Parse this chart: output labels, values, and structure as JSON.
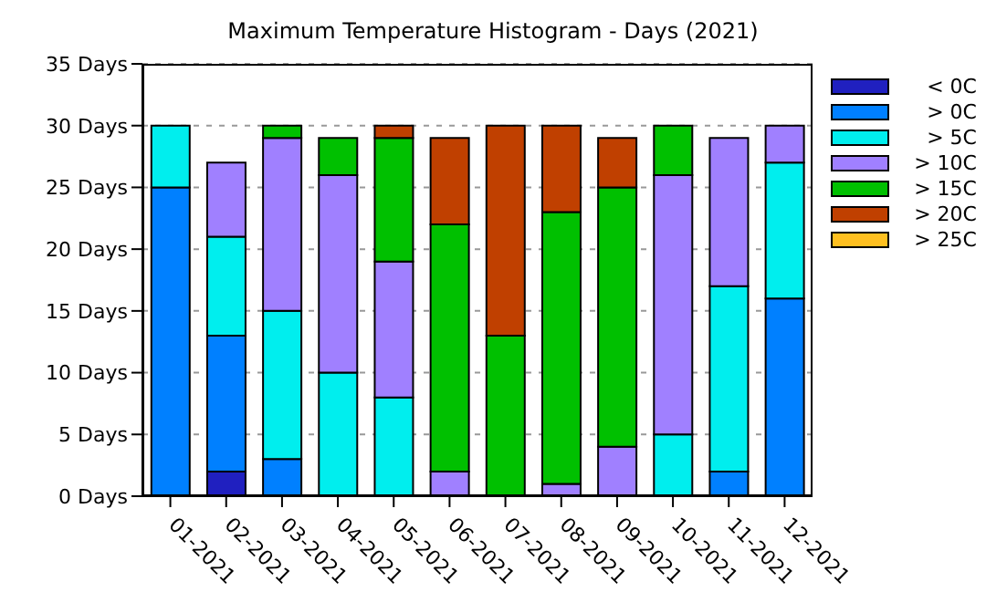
{
  "chart_data": {
    "type": "bar",
    "title": "Maximum Temperature Histogram - Days (2021)",
    "categories": [
      "01-2021",
      "02-2021",
      "03-2021",
      "04-2021",
      "05-2021",
      "06-2021",
      "07-2021",
      "08-2021",
      "09-2021",
      "10-2021",
      "11-2021",
      "12-2021"
    ],
    "stacked": true,
    "series": [
      {
        "name": "< 0C",
        "color": "#2020c0",
        "values": [
          0,
          2,
          0,
          0,
          0,
          0,
          0,
          0,
          0,
          0,
          0,
          0
        ]
      },
      {
        "name": "> 0C",
        "color": "#0080ff",
        "values": [
          25,
          11,
          3,
          0,
          0,
          0,
          0,
          0,
          0,
          0,
          2,
          16
        ]
      },
      {
        "name": "> 5C",
        "color": "#00eeee",
        "values": [
          5,
          8,
          12,
          10,
          8,
          0,
          0,
          0,
          0,
          5,
          15,
          11
        ]
      },
      {
        "name": "> 10C",
        "color": "#a080ff",
        "values": [
          0,
          6,
          14,
          16,
          11,
          2,
          0,
          1,
          4,
          21,
          12,
          3
        ]
      },
      {
        "name": "> 15C",
        "color": "#00c000",
        "values": [
          0,
          0,
          1,
          3,
          10,
          20,
          13,
          22,
          21,
          4,
          0,
          0
        ]
      },
      {
        "name": "> 20C",
        "color": "#c04000",
        "values": [
          0,
          0,
          0,
          0,
          1,
          7,
          17,
          7,
          4,
          0,
          0,
          0
        ]
      },
      {
        "name": "> 25C",
        "color": "#ffc020",
        "values": [
          0,
          0,
          0,
          0,
          0,
          0,
          0,
          0,
          0,
          0,
          0,
          0
        ]
      }
    ],
    "ylim": [
      0,
      35
    ],
    "yticks": [
      {
        "value": 0,
        "label": "0 Days"
      },
      {
        "value": 5,
        "label": "5 Days"
      },
      {
        "value": 10,
        "label": "10 Days"
      },
      {
        "value": 15,
        "label": "15 Days"
      },
      {
        "value": 20,
        "label": "20 Days"
      },
      {
        "value": 25,
        "label": "25 Days"
      },
      {
        "value": 30,
        "label": "30 Days"
      },
      {
        "value": 35,
        "label": "35 Days"
      }
    ],
    "grid": "y",
    "legend": "right"
  }
}
